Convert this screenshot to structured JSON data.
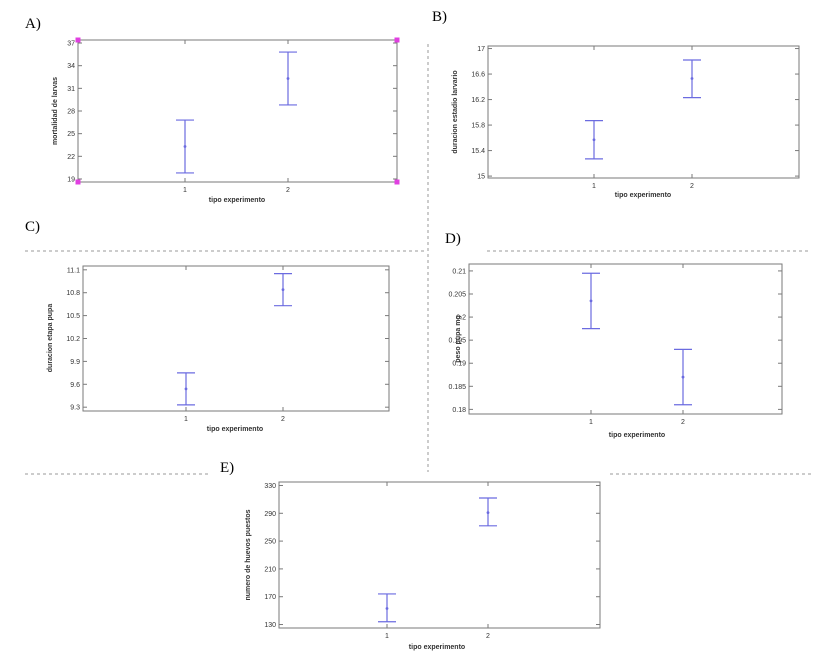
{
  "chart_data": [
    {
      "type": "scatter",
      "panel": "A)",
      "xlabel": "tipo experimento",
      "ylabel": "mortalidad de larvas",
      "categories": [
        "1",
        "2"
      ],
      "yticks": [
        19,
        22,
        25,
        28,
        31,
        34,
        37
      ],
      "ylim": [
        18.6,
        37.4
      ],
      "series": [
        {
          "mean": [
            23.3,
            32.3
          ],
          "lower": [
            19.8,
            28.8
          ],
          "upper": [
            26.8,
            35.8
          ]
        }
      ],
      "colors": {
        "interval": "#6b6be0",
        "corner_markers": "#e040e0"
      }
    },
    {
      "type": "scatter",
      "panel": "B)",
      "xlabel": "tipo experimento",
      "ylabel": "duracion estadio larvario",
      "categories": [
        "1",
        "2"
      ],
      "yticks": [
        15,
        15.4,
        15.8,
        16.2,
        16.6,
        17
      ],
      "ylim": [
        14.97,
        17.04
      ],
      "series": [
        {
          "mean": [
            15.57,
            16.53
          ],
          "lower": [
            15.27,
            16.23
          ],
          "upper": [
            15.87,
            16.82
          ]
        }
      ],
      "colors": {
        "interval": "#6b6be0"
      }
    },
    {
      "type": "scatter",
      "panel": "C)",
      "xlabel": "tipo experimento",
      "ylabel": "duracion etapa pupa",
      "categories": [
        "1",
        "2"
      ],
      "yticks": [
        9.3,
        9.6,
        9.9,
        10.2,
        10.5,
        10.8,
        11.1
      ],
      "ylim": [
        9.25,
        11.15
      ],
      "series": [
        {
          "mean": [
            9.54,
            10.84
          ],
          "lower": [
            9.33,
            10.63
          ],
          "upper": [
            9.75,
            11.05
          ]
        }
      ],
      "colors": {
        "interval": "#6b6be0"
      }
    },
    {
      "type": "scatter",
      "panel": "D)",
      "xlabel": "tipo experimento",
      "ylabel": "peso pupa mg",
      "categories": [
        "1",
        "2"
      ],
      "yticks": [
        0.18,
        0.185,
        0.19,
        0.195,
        0.2,
        0.205,
        0.21
      ],
      "ylim": [
        0.179,
        0.2115
      ],
      "series": [
        {
          "mean": [
            0.2035,
            0.187
          ],
          "lower": [
            0.1975,
            0.181
          ],
          "upper": [
            0.2095,
            0.193
          ]
        }
      ],
      "colors": {
        "interval": "#6b6be0"
      }
    },
    {
      "type": "scatter",
      "panel": "E)",
      "xlabel": "tipo experimento",
      "ylabel": "numero de huevos puestos",
      "categories": [
        "1",
        "2"
      ],
      "yticks": [
        130,
        170,
        210,
        250,
        290,
        330
      ],
      "ylim": [
        125,
        335
      ],
      "series": [
        {
          "mean": [
            153,
            291
          ],
          "lower": [
            134,
            272
          ],
          "upper": [
            174,
            312
          ]
        }
      ],
      "colors": {
        "interval": "#6b6be0"
      }
    }
  ]
}
